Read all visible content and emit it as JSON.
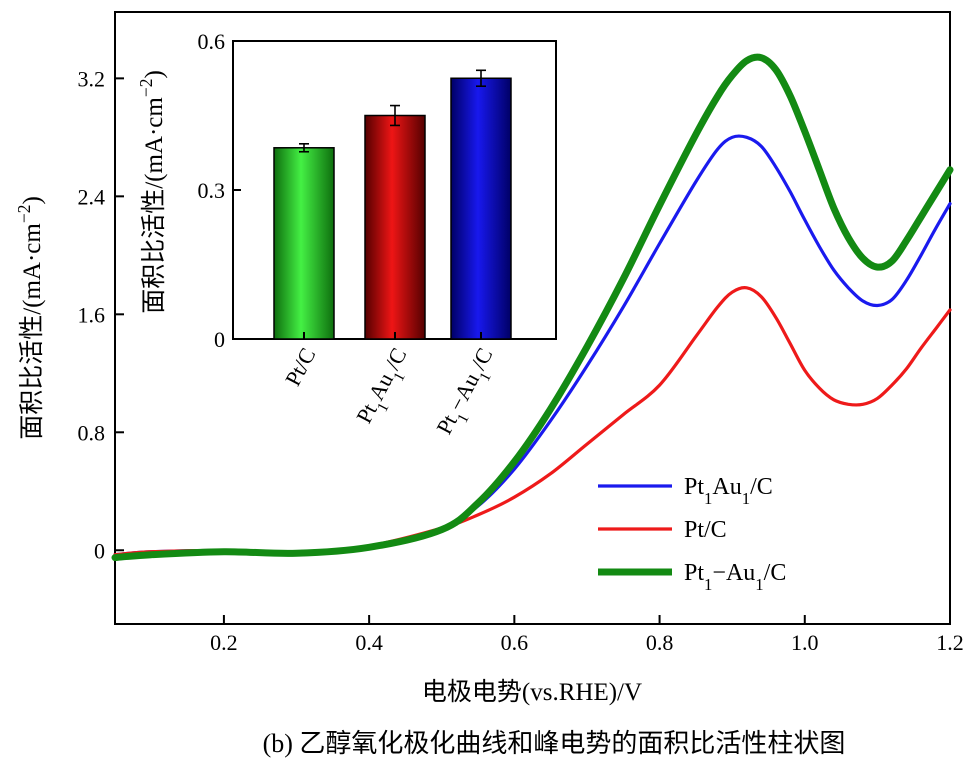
{
  "chart_data": [
    {
      "type": "line",
      "xlabel": "电极电势(vs.RHE)/V",
      "ylabel": "面积比活性/(mA·cm−2)",
      "xlim": [
        0.05,
        1.2
      ],
      "ylim": [
        -0.5,
        3.65
      ],
      "xticks": [
        "0.2",
        "0.4",
        "0.6",
        "0.8",
        "1.0",
        "1.2"
      ],
      "xtick_values": [
        0.2,
        0.4,
        0.6,
        0.8,
        1.0,
        1.2
      ],
      "yticks": [
        "0",
        "0.8",
        "1.6",
        "2.4",
        "3.2"
      ],
      "ytick_values": [
        0,
        0.8,
        1.6,
        2.4,
        3.2
      ],
      "legend_position": "lower-right",
      "series": [
        {
          "name": "Pt1Au1/C",
          "color": "#1a1aee",
          "x": [
            0.05,
            0.1,
            0.2,
            0.3,
            0.4,
            0.5,
            0.55,
            0.6,
            0.65,
            0.7,
            0.75,
            0.8,
            0.85,
            0.88,
            0.9,
            0.92,
            0.94,
            0.96,
            0.98,
            1.0,
            1.02,
            1.04,
            1.06,
            1.08,
            1.1,
            1.12,
            1.14,
            1.16,
            1.18,
            1.2
          ],
          "values": [
            -0.03,
            -0.01,
            0.0,
            -0.01,
            0.03,
            0.15,
            0.3,
            0.55,
            0.88,
            1.25,
            1.65,
            2.08,
            2.5,
            2.72,
            2.8,
            2.8,
            2.74,
            2.6,
            2.43,
            2.24,
            2.06,
            1.9,
            1.78,
            1.69,
            1.66,
            1.7,
            1.83,
            2.0,
            2.18,
            2.35
          ]
        },
        {
          "name": "Pt/C",
          "color": "#ee1a1a",
          "x": [
            0.05,
            0.1,
            0.2,
            0.3,
            0.4,
            0.5,
            0.55,
            0.6,
            0.65,
            0.7,
            0.75,
            0.8,
            0.85,
            0.88,
            0.9,
            0.92,
            0.94,
            0.96,
            0.98,
            1.0,
            1.02,
            1.04,
            1.06,
            1.08,
            1.1,
            1.12,
            1.14,
            1.16,
            1.18,
            1.2
          ],
          "values": [
            -0.03,
            -0.01,
            0.0,
            -0.01,
            0.03,
            0.15,
            0.24,
            0.36,
            0.52,
            0.72,
            0.92,
            1.12,
            1.45,
            1.65,
            1.75,
            1.78,
            1.72,
            1.58,
            1.4,
            1.22,
            1.1,
            1.02,
            0.99,
            0.99,
            1.03,
            1.12,
            1.23,
            1.37,
            1.5,
            1.63
          ]
        },
        {
          "name": "Pt1−Au1/C",
          "color": "#138a13",
          "x": [
            0.05,
            0.1,
            0.2,
            0.3,
            0.4,
            0.5,
            0.55,
            0.6,
            0.65,
            0.7,
            0.75,
            0.8,
            0.85,
            0.88,
            0.9,
            0.92,
            0.94,
            0.96,
            0.98,
            1.0,
            1.02,
            1.04,
            1.06,
            1.08,
            1.1,
            1.12,
            1.14,
            1.16,
            1.18,
            1.2
          ],
          "values": [
            -0.05,
            -0.03,
            -0.01,
            -0.02,
            0.02,
            0.14,
            0.32,
            0.6,
            0.96,
            1.38,
            1.84,
            2.34,
            2.82,
            3.08,
            3.22,
            3.32,
            3.34,
            3.26,
            3.08,
            2.84,
            2.58,
            2.32,
            2.12,
            1.98,
            1.92,
            1.96,
            2.1,
            2.26,
            2.42,
            2.58
          ]
        }
      ]
    },
    {
      "type": "bar",
      "ylabel": "面积比活性/(mA·cm−2)",
      "ylim": [
        0,
        0.6
      ],
      "yticks": [
        "0",
        "0.3",
        "0.6"
      ],
      "ytick_values": [
        0,
        0.3,
        0.6
      ],
      "categories": [
        "Pt/C",
        "Pt1Au1/C",
        "Pt1−Au1/C"
      ],
      "values": [
        0.385,
        0.45,
        0.525
      ],
      "errors": [
        0.008,
        0.02,
        0.016
      ],
      "colors": [
        "#2ee62e",
        "#cc1010",
        "#1414dd"
      ]
    }
  ],
  "caption": "(b) 乙醇氧化极化曲线和峰电势的面积比活性柱状图"
}
